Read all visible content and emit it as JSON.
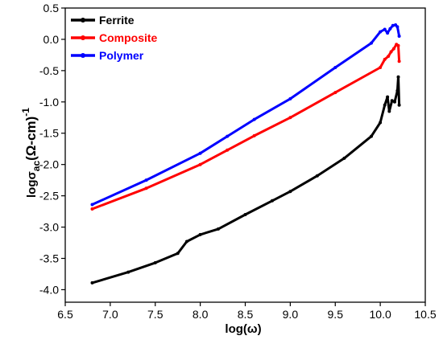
{
  "chart_data": {
    "type": "line",
    "xlabel": "log(ω)",
    "ylabel": "logσac(Ω-cm)-1",
    "ylabel_parts": {
      "base": "logσ",
      "sub": "ac",
      "unit": "(Ω-cm)",
      "sup": "-1"
    },
    "xlim": [
      6.5,
      10.5
    ],
    "ylim": [
      -4.2,
      0.5
    ],
    "xticks": [
      "6.5",
      "7.0",
      "7.5",
      "8.0",
      "8.5",
      "9.0",
      "9.5",
      "10.0",
      "10.5"
    ],
    "yticks": [
      "0.5",
      "0.0",
      "-0.5",
      "-1.0",
      "-1.5",
      "-2.0",
      "-2.5",
      "-3.0",
      "-3.5",
      "-4.0"
    ],
    "legend_position": "top-left",
    "series": [
      {
        "name": "Ferrite",
        "color": "#000000",
        "x": [
          6.8,
          7.2,
          7.5,
          7.75,
          7.85,
          8.0,
          8.2,
          8.5,
          8.8,
          9.0,
          9.3,
          9.6,
          9.9,
          10.0,
          10.05,
          10.08,
          10.1,
          10.13,
          10.16,
          10.19,
          10.2,
          10.21
        ],
        "y": [
          -3.89,
          -3.72,
          -3.57,
          -3.42,
          -3.23,
          -3.12,
          -3.03,
          -2.8,
          -2.58,
          -2.43,
          -2.18,
          -1.9,
          -1.55,
          -1.33,
          -1.05,
          -0.92,
          -1.15,
          -0.98,
          -1.0,
          -0.82,
          -0.6,
          -1.05
        ]
      },
      {
        "name": "Composite",
        "color": "#ff0000",
        "x": [
          6.8,
          7.4,
          8.0,
          8.3,
          8.6,
          9.0,
          9.5,
          10.0,
          10.05,
          10.09,
          10.12,
          10.15,
          10.18,
          10.2,
          10.21
        ],
        "y": [
          -2.71,
          -2.38,
          -2.0,
          -1.77,
          -1.54,
          -1.25,
          -0.85,
          -0.45,
          -0.32,
          -0.27,
          -0.2,
          -0.15,
          -0.08,
          -0.1,
          -0.35
        ]
      },
      {
        "name": "Polymer",
        "color": "#0000ff",
        "x": [
          6.8,
          7.4,
          8.0,
          8.3,
          8.6,
          9.0,
          9.5,
          9.9,
          10.0,
          10.05,
          10.08,
          10.11,
          10.14,
          10.17,
          10.19,
          10.21
        ],
        "y": [
          -2.64,
          -2.25,
          -1.82,
          -1.55,
          -1.28,
          -0.95,
          -0.45,
          -0.06,
          0.12,
          0.16,
          0.1,
          0.17,
          0.22,
          0.23,
          0.2,
          0.05
        ]
      }
    ]
  }
}
